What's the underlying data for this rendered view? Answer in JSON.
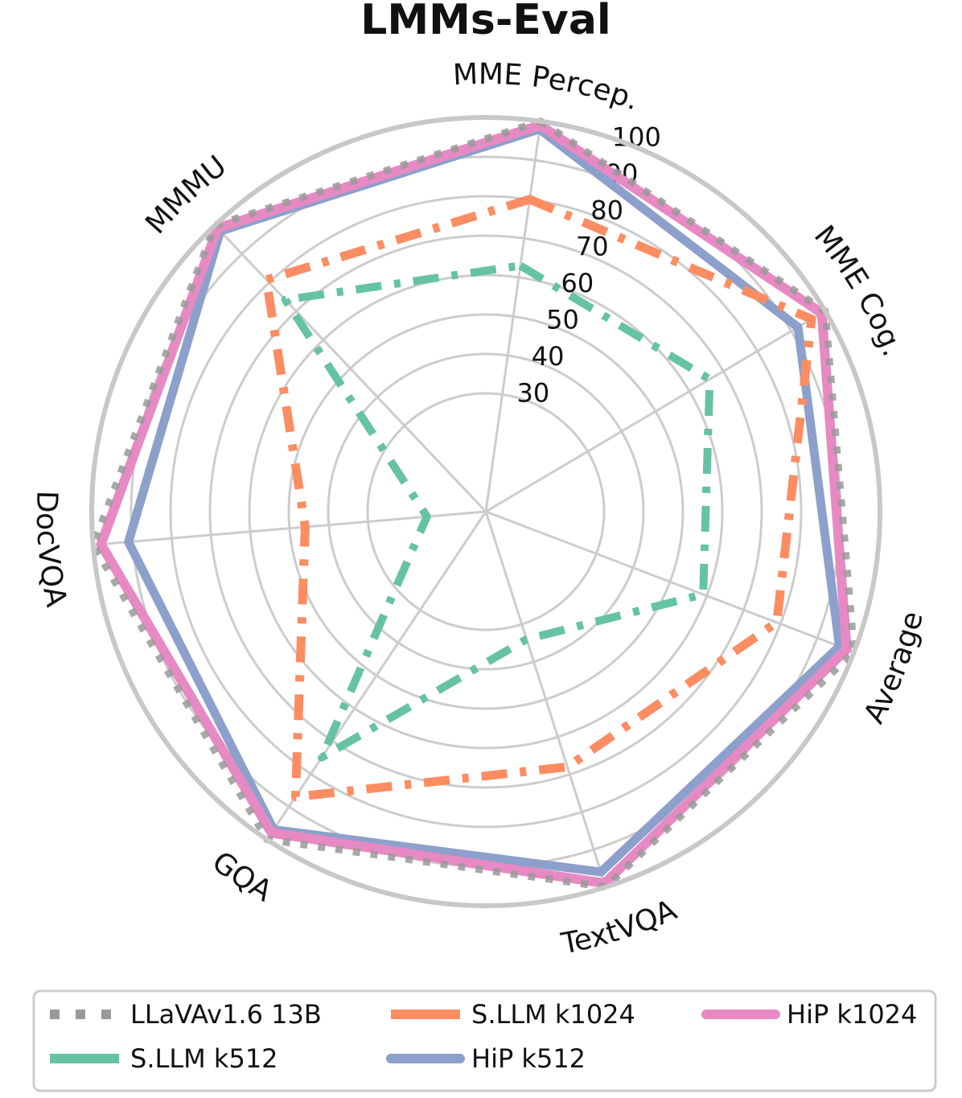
{
  "chart_data": {
    "type": "radar",
    "title": "LMMs-Eval",
    "axes": [
      "MME Percep.",
      "MME Cog.",
      "Average",
      "TextVQA",
      "GQA",
      "DocVQA",
      "MMMU"
    ],
    "radial_ticks": [
      30,
      40,
      50,
      60,
      70,
      80,
      90,
      100
    ],
    "rlim": [
      0,
      100
    ],
    "grid": true,
    "legend_position": "bottom",
    "series": [
      {
        "name": "LLaVAv1.6 13B",
        "color": "#999999",
        "style": "dotted",
        "values": [
          100,
          100,
          100,
          100,
          100,
          100,
          100
        ]
      },
      {
        "name": "S.LLM k1024",
        "color": "#fc8d62",
        "style": "dashdot",
        "values": [
          80,
          96,
          79,
          68,
          87,
          46,
          81
        ]
      },
      {
        "name": "HiP k1024",
        "color": "#e78ac3",
        "style": "solid",
        "values": [
          99,
          99,
          98,
          99,
          98,
          98,
          99
        ]
      },
      {
        "name": "S.LLM k512",
        "color": "#66c2a5",
        "style": "dashdot",
        "values": [
          63,
          66,
          59,
          34,
          75,
          15,
          74
        ]
      },
      {
        "name": "HiP k512",
        "color": "#8da0cb",
        "style": "solid",
        "values": [
          98,
          92,
          96,
          96,
          97,
          91,
          98
        ]
      }
    ]
  }
}
